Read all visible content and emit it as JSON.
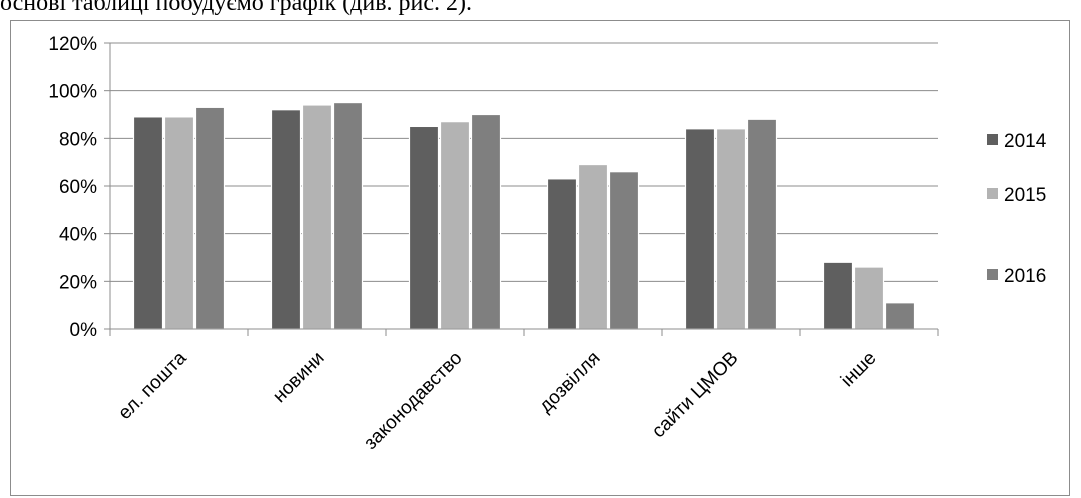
{
  "caption": "основі таблиці побудуємо графік (див. рис. 2).",
  "chart_data": {
    "type": "bar",
    "categories": [
      "ел. пошта",
      "новини",
      "законодавство",
      "дозвілля",
      "сайти ЦМОВ",
      "інше"
    ],
    "series": [
      {
        "name": "2014",
        "values": [
          89,
          92,
          85,
          63,
          84,
          28
        ],
        "color": "#5f5f5f"
      },
      {
        "name": "2015",
        "values": [
          89,
          94,
          87,
          69,
          84,
          26
        ],
        "color": "#b3b3b3"
      },
      {
        "name": "2016",
        "values": [
          93,
          95,
          90,
          66,
          88,
          11
        ],
        "color": "#7f7f7f"
      }
    ],
    "yticks": [
      "0%",
      "20%",
      "40%",
      "60%",
      "80%",
      "100%",
      "120%"
    ],
    "ylim": [
      0,
      120
    ],
    "grid": true,
    "legend_position": "right"
  }
}
